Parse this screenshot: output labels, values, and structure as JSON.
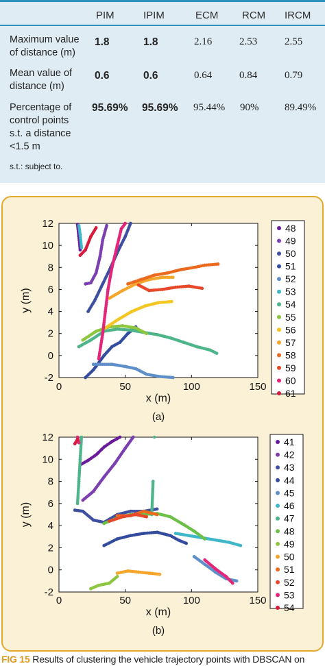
{
  "table": {
    "headers": [
      "PIM",
      "IPIM",
      "ECM",
      "RCM",
      "IRCM"
    ],
    "rows": [
      {
        "label": "Maximum value of distance (m)",
        "label_lines": [
          "Maximum value",
          "of distance (m)"
        ],
        "values": [
          "1.8",
          "1.8",
          "2.16",
          "2.53",
          "2.55"
        ]
      },
      {
        "label": "Mean value of distance (m)",
        "label_lines": [
          "Mean value of",
          "distance (m)"
        ],
        "values": [
          "0.6",
          "0.6",
          "0.64",
          "0.84",
          "0.79"
        ]
      },
      {
        "label": "Percentage of control points s.t. a distance <1.5 m",
        "label_lines": [
          "Percentage of",
          "control points",
          "s.t. a distance",
          "<1.5 m"
        ],
        "values": [
          "95.69%",
          "95.69%",
          "95.44%",
          "90%",
          "89.49%"
        ]
      }
    ],
    "footnote": "s.t.: subject to."
  },
  "caption": {
    "figure_number": "FIG 15",
    "text": "Results of clustering the vehicle trajectory points with DBSCAN on"
  },
  "chart_data": [
    {
      "type": "scatter",
      "panel_label": "(a)",
      "xlabel": "x (m)",
      "ylabel": "y (m)",
      "xlim": [
        0,
        150
      ],
      "ylim": [
        -2,
        12
      ],
      "xticks": [
        0,
        50,
        100,
        150
      ],
      "yticks": [
        -2,
        0,
        2,
        4,
        6,
        8,
        10,
        12
      ],
      "grid": false,
      "legend_position": "right",
      "series": [
        {
          "name": "48",
          "color": "#6a1b9a",
          "points": [
            [
              14,
              11.9
            ],
            [
              15,
              10.8
            ],
            [
              16,
              9.6
            ]
          ]
        },
        {
          "name": "49",
          "color": "#7b3fb0",
          "points": [
            [
              20,
              6.5
            ],
            [
              24,
              6.6
            ],
            [
              28,
              7.5
            ],
            [
              31,
              9
            ],
            [
              33,
              10.5
            ],
            [
              36,
              11.8
            ]
          ]
        },
        {
          "name": "50",
          "color": "#3f4fa0",
          "points": [
            [
              22,
              4.0
            ],
            [
              27,
              5.0
            ],
            [
              33,
              6.5
            ],
            [
              39,
              8
            ],
            [
              45,
              9.6
            ],
            [
              50,
              10.8
            ],
            [
              54,
              12
            ]
          ]
        },
        {
          "name": "51",
          "color": "#344c9e",
          "points": [
            [
              20,
              -2
            ],
            [
              26,
              -1.3
            ],
            [
              34,
              0
            ],
            [
              40,
              0.8
            ],
            [
              46,
              1.2
            ],
            [
              52,
              2
            ],
            [
              58,
              2.6
            ]
          ]
        },
        {
          "name": "52",
          "color": "#5e8fc9",
          "points": [
            [
              26,
              -0.8
            ],
            [
              40,
              -0.8
            ],
            [
              50,
              -1
            ],
            [
              58,
              -1.2
            ],
            [
              66,
              -1.7
            ],
            [
              75,
              -1.9
            ],
            [
              86,
              -2
            ]
          ]
        },
        {
          "name": "53",
          "color": "#3fb7c9",
          "points": [
            [
              15,
              11.8
            ],
            [
              16,
              11
            ],
            [
              17,
              9.8
            ]
          ]
        },
        {
          "name": "54",
          "color": "#4eb48a",
          "points": [
            [
              15,
              0.8
            ],
            [
              24,
              1.4
            ],
            [
              34,
              2.2
            ],
            [
              44,
              2.4
            ],
            [
              54,
              2.3
            ],
            [
              64,
              2.1
            ],
            [
              74,
              1.9
            ],
            [
              84,
              1.6
            ],
            [
              94,
              1.2
            ],
            [
              104,
              0.8
            ],
            [
              114,
              0.5
            ],
            [
              119,
              0.2
            ]
          ]
        },
        {
          "name": "55",
          "color": "#8dc63f",
          "points": [
            [
              18,
              1.4
            ],
            [
              28,
              2.2
            ],
            [
              38,
              2.6
            ],
            [
              48,
              2.7
            ],
            [
              58,
              2.5
            ],
            [
              66,
              2.0
            ]
          ]
        },
        {
          "name": "56",
          "color": "#f3c623",
          "points": [
            [
              35,
              2.5
            ],
            [
              45,
              3.3
            ],
            [
              55,
              4.0
            ],
            [
              65,
              4.5
            ],
            [
              75,
              4.8
            ],
            [
              85,
              4.9
            ]
          ]
        },
        {
          "name": "57",
          "color": "#f4a62a",
          "points": [
            [
              38,
              5.2
            ],
            [
              48,
              5.9
            ],
            [
              58,
              6.5
            ],
            [
              68,
              6.9
            ],
            [
              78,
              7.1
            ],
            [
              86,
              7.1
            ]
          ]
        },
        {
          "name": "58",
          "color": "#ec6a1e",
          "points": [
            [
              52,
              6.5
            ],
            [
              62,
              6.9
            ],
            [
              72,
              7.3
            ],
            [
              82,
              7.5
            ],
            [
              92,
              7.8
            ],
            [
              102,
              8.0
            ],
            [
              110,
              8.2
            ],
            [
              120,
              8.3
            ]
          ]
        },
        {
          "name": "59",
          "color": "#e8482a",
          "points": [
            [
              60,
              6.4
            ],
            [
              68,
              5.9
            ],
            [
              78,
              6.0
            ],
            [
              88,
              6.2
            ],
            [
              98,
              6.3
            ],
            [
              108,
              6.1
            ]
          ]
        },
        {
          "name": "60",
          "color": "#e2267a",
          "points": [
            [
              30,
              -0.3
            ],
            [
              33,
              2
            ],
            [
              35,
              4
            ],
            [
              37,
              6
            ],
            [
              40,
              8
            ],
            [
              44,
              10
            ],
            [
              47,
              11.5
            ],
            [
              50,
              12
            ]
          ]
        },
        {
          "name": "61",
          "color": "#d81b3c",
          "points": [
            [
              16,
              9.1
            ],
            [
              20,
              9.6
            ],
            [
              24,
              10.8
            ],
            [
              28,
              11.6
            ]
          ]
        }
      ]
    },
    {
      "type": "scatter",
      "panel_label": "(b)",
      "xlabel": "x (m)",
      "ylabel": "y (m)",
      "xlim": [
        0,
        150
      ],
      "ylim": [
        -2,
        12
      ],
      "xticks": [
        0,
        50,
        100,
        150
      ],
      "yticks": [
        -2,
        0,
        2,
        4,
        6,
        8,
        10,
        12
      ],
      "grid": false,
      "legend_position": "right",
      "series": [
        {
          "name": "41",
          "color": "#6a1b9a",
          "points": [
            [
              16,
              9.5
            ],
            [
              22,
              9.9
            ],
            [
              28,
              10.4
            ],
            [
              34,
              11.1
            ],
            [
              40,
              11.6
            ],
            [
              46,
              12
            ]
          ]
        },
        {
          "name": "42",
          "color": "#7b3fb0",
          "points": [
            [
              18,
              6.3
            ],
            [
              26,
              7.1
            ],
            [
              34,
              8.4
            ],
            [
              42,
              9.6
            ],
            [
              50,
              11
            ],
            [
              56,
              12
            ]
          ]
        },
        {
          "name": "43",
          "color": "#3f4fa0",
          "points": [
            [
              12,
              5.4
            ],
            [
              18,
              5.3
            ],
            [
              26,
              4.5
            ],
            [
              34,
              4.3
            ],
            [
              44,
              5
            ],
            [
              54,
              5.3
            ],
            [
              64,
              5.3
            ],
            [
              74,
              5.5
            ]
          ]
        },
        {
          "name": "44",
          "color": "#344c9e",
          "points": [
            [
              34,
              2.2
            ],
            [
              44,
              2.8
            ],
            [
              54,
              3.1
            ],
            [
              64,
              3.3
            ],
            [
              74,
              3.4
            ],
            [
              84,
              3.1
            ],
            [
              90,
              2.7
            ],
            [
              96,
              2.4
            ]
          ]
        },
        {
          "name": "45",
          "color": "#5e8fc9",
          "points": [
            [
              102,
              1.2
            ],
            [
              110,
              0.5
            ],
            [
              118,
              -0.2
            ],
            [
              126,
              -0.8
            ],
            [
              134,
              -1.0
            ]
          ]
        },
        {
          "name": "46",
          "color": "#3fb7c9",
          "points": [
            [
              88,
              3.3
            ],
            [
              98,
              3.1
            ],
            [
              108,
              2.9
            ],
            [
              118,
              2.7
            ],
            [
              128,
              2.5
            ],
            [
              137,
              2.2
            ]
          ]
        },
        {
          "name": "47",
          "color": "#4eb48a",
          "points": [
            [
              14,
              6
            ],
            [
              15,
              8
            ],
            [
              16,
              10
            ],
            [
              17,
              12
            ],
            [
              70,
              5
            ],
            [
              71,
              8
            ],
            [
              72,
              12
            ]
          ]
        },
        {
          "name": "48",
          "color": "#6cbf47",
          "points": [
            [
              34,
              4.2
            ],
            [
              44,
              4.7
            ],
            [
              54,
              5.0
            ],
            [
              64,
              5.0
            ],
            [
              74,
              5.1
            ],
            [
              84,
              4.8
            ],
            [
              94,
              4.1
            ],
            [
              102,
              3.5
            ],
            [
              110,
              2.8
            ]
          ]
        },
        {
          "name": "49",
          "color": "#8dc63f",
          "points": [
            [
              24,
              -1.7
            ],
            [
              30,
              -1.4
            ],
            [
              38,
              -1.2
            ],
            [
              44,
              -0.6
            ]
          ]
        },
        {
          "name": "50",
          "color": "#f4a62a",
          "points": [
            [
              44,
              -0.3
            ],
            [
              52,
              -0.1
            ],
            [
              60,
              -0.2
            ],
            [
              68,
              -0.3
            ],
            [
              76,
              -0.4
            ]
          ]
        },
        {
          "name": "51",
          "color": "#ec6a1e",
          "points": [
            [
              44,
              4.9
            ],
            [
              54,
              4.9
            ],
            [
              64,
              5.3
            ],
            [
              74,
              5.0
            ]
          ]
        },
        {
          "name": "52",
          "color": "#e8482a",
          "points": [
            [
              38,
              4.4
            ],
            [
              48,
              4.8
            ],
            [
              58,
              5.0
            ],
            [
              66,
              4.8
            ]
          ]
        },
        {
          "name": "53",
          "color": "#e2267a",
          "points": [
            [
              14,
              12
            ],
            [
              15,
              11.5
            ],
            [
              110,
              0.9
            ],
            [
              118,
              0.1
            ],
            [
              126,
              -0.6
            ],
            [
              131,
              -1.2
            ]
          ]
        },
        {
          "name": "54",
          "color": "#d81b3c",
          "points": [
            [
              12,
              11.4
            ],
            [
              14,
              11.8
            ]
          ]
        }
      ]
    }
  ]
}
